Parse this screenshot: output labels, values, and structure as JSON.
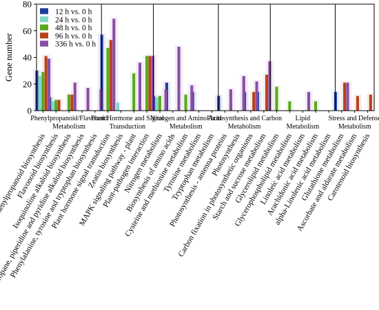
{
  "chart_data": {
    "type": "bar",
    "title": "",
    "xlabel": "",
    "ylabel": "Gene number",
    "ylim": [
      0,
      80
    ],
    "yticks": [
      0,
      20,
      40,
      60,
      80
    ],
    "grid": false,
    "legend_position": "top-left",
    "categories": [
      "Phenylpropanoid biosynthesis",
      "Flavonoid biosynthesis",
      "Isoquinoline alkaloid biosynthesis",
      "Tropane, piperidine and pyridine alkaloid biosynthesis",
      "Phenylalanine, tyrosine and tryptophan biosynthesis",
      "Plant hormone signal transduction",
      "Zeatin biosynthesis",
      "MAPK signaling pathway - plant",
      "Plant-pathogen interaction",
      "Nitrogen metabolism",
      "Biosynthesis of amino acids",
      "Cysteine and methionine metabolism",
      "Tyrosine metabolism",
      "Tryptophan metabolism",
      "Photosynthesis - antenna proteins",
      "Photosynthesis",
      "Carbon fixation in photosynthetic organisms",
      "Starch and sucrose metabolism",
      "Glycerolipid metabolism",
      "Glycerophospholipid metabolism",
      "Linoleic acid metabolism",
      "Arachidonic acid metabolism",
      "alpha-Linolenic acid metabolism",
      "Glutathione metabolism",
      "Ascorbate and aldarate metabolism",
      "Carotenoid biosynthesis"
    ],
    "series": [
      {
        "name": "12 h vs. 0 h",
        "color": "#1f3f9e",
        "values": [
          30,
          10,
          0,
          0,
          0,
          57,
          0,
          0,
          0,
          11,
          21,
          0,
          14,
          0,
          11,
          0,
          14,
          14,
          0,
          0,
          0,
          0,
          0,
          14,
          0,
          0
        ]
      },
      {
        "name": "24 h vs. 0 h",
        "color": "#7fd8c8",
        "values": [
          26,
          7,
          0,
          0,
          0,
          0,
          6,
          0,
          0,
          10,
          0,
          0,
          0,
          0,
          0,
          0,
          0,
          0,
          0,
          0,
          0,
          0,
          0,
          0,
          0,
          0
        ]
      },
      {
        "name": "48 h vs. 0 h",
        "color": "#5aa91e",
        "values": [
          29,
          8,
          12,
          0,
          0,
          47,
          0,
          28,
          41,
          11,
          0,
          12,
          0,
          0,
          0,
          0,
          0,
          0,
          18,
          7,
          0,
          7,
          0,
          0,
          0,
          0
        ]
      },
      {
        "name": "96 h vs. 0 h",
        "color": "#b8421e",
        "values": [
          41,
          8,
          12,
          0,
          0,
          53,
          0,
          0,
          41,
          0,
          0,
          0,
          0,
          0,
          0,
          0,
          14,
          27,
          0,
          0,
          0,
          0,
          0,
          21,
          11,
          12
        ]
      },
      {
        "name": "336 h vs. 0 h",
        "color": "#8a4ea7",
        "values": [
          39,
          0,
          21,
          17,
          16,
          69,
          0,
          36,
          41,
          16,
          48,
          19,
          0,
          0,
          16,
          26,
          22,
          37,
          0,
          0,
          14,
          0,
          0,
          21,
          0,
          0
        ]
      }
    ],
    "groups": [
      {
        "label": "Phenylpropanoid/Flavonoid Metabolism",
        "start": 0,
        "end": 4
      },
      {
        "label": "Plant Hormone and Signal Transduction",
        "start": 5,
        "end": 8
      },
      {
        "label": "Nitrogen and Amino Acid Metabolism",
        "start": 9,
        "end": 13
      },
      {
        "label": "Photosynthesis and Carbon Metabolism",
        "start": 14,
        "end": 17
      },
      {
        "label": "Lipid Metabolism",
        "start": 18,
        "end": 22
      },
      {
        "label": "Stress and Defense Metabolism",
        "start": 23,
        "end": 25
      }
    ]
  }
}
